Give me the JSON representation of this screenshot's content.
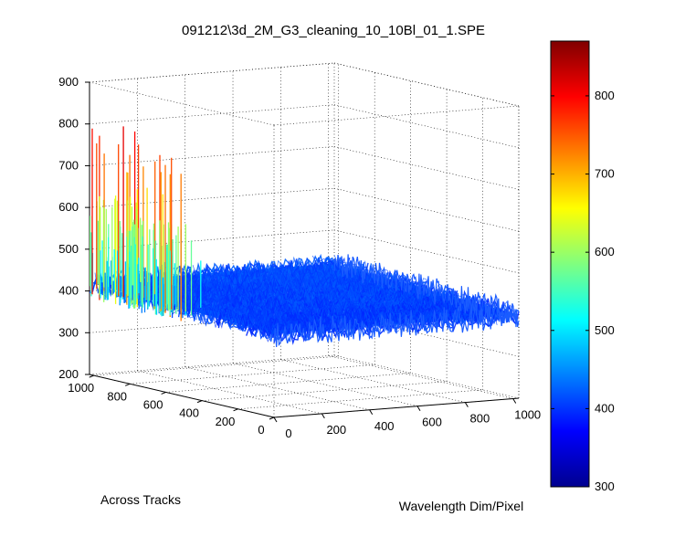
{
  "chart_data": {
    "type": "surface",
    "title": "091212\\3d_2M_G3_cleaning_10_10Bl_01_1.SPE",
    "xlabel": "Wavelength Dim/Pixel",
    "ylabel": "Across Tracks",
    "zlabel": "",
    "x_range": [
      0,
      1024
    ],
    "y_range": [
      0,
      1024
    ],
    "z_range": [
      200,
      900
    ],
    "x_ticks": [
      "0",
      "200",
      "400",
      "600",
      "800",
      "1000"
    ],
    "y_ticks": [
      "0",
      "200",
      "400",
      "600",
      "800",
      "1000"
    ],
    "z_ticks": [
      "200",
      "300",
      "400",
      "500",
      "600",
      "700",
      "800",
      "900"
    ],
    "colorbar": {
      "range": [
        300,
        870
      ],
      "ticks": [
        "300",
        "400",
        "500",
        "600",
        "700",
        "800"
      ],
      "colormap": "jet"
    },
    "grid": true,
    "surface_summary": {
      "background_level": 400,
      "noise_amplitude": 25,
      "spike_region": "high Across Tracks values near Wavelength Pixel 0",
      "spike_peak_max": 870
    }
  }
}
